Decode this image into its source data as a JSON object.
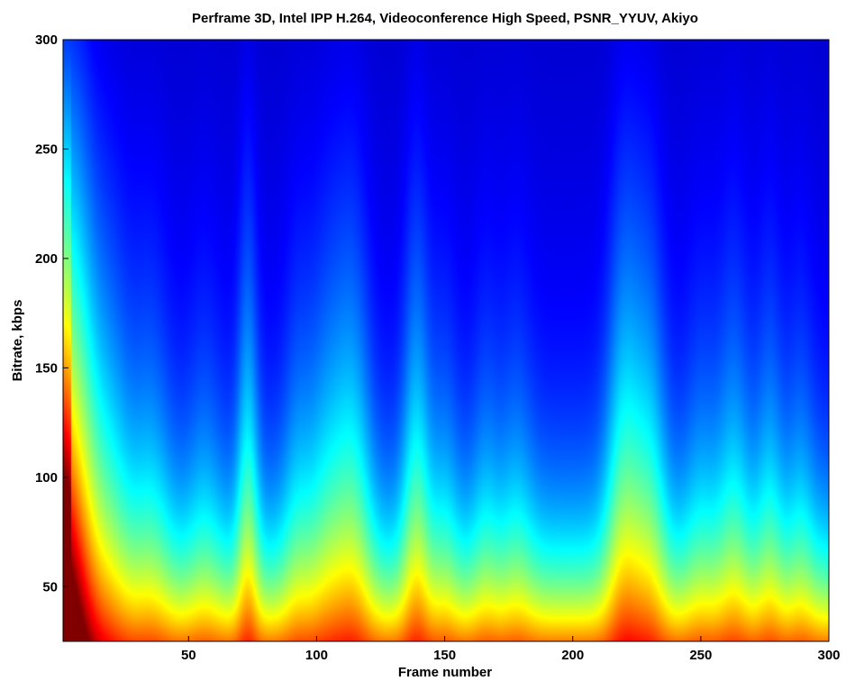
{
  "chart_data": {
    "type": "heatmap",
    "title": "Perframe 3D, Intel IPP H.264, Videoconference High Speed, PSNR_YYUV, Akiyo",
    "xlabel": "Frame number",
    "ylabel": "Bitrate, kbps",
    "xlim": [
      1,
      300
    ],
    "ylim": [
      25,
      300
    ],
    "x_ticks": [
      50,
      100,
      150,
      200,
      250,
      300
    ],
    "y_ticks": [
      50,
      100,
      150,
      200,
      250,
      300
    ],
    "grid": false,
    "legend": "none",
    "colormap": "jet",
    "value_scale": "relative PSNR (0 = low, 1 = high)",
    "peaks": [
      {
        "frame": 1,
        "height": 1.0,
        "width": 10
      },
      {
        "frame": 5,
        "height": 0.5,
        "width": 6
      },
      {
        "frame": 20,
        "height": 0.35,
        "width": 6
      },
      {
        "frame": 35,
        "height": 0.3,
        "width": 6
      },
      {
        "frame": 56,
        "height": 0.18,
        "width": 5
      },
      {
        "frame": 73,
        "height": 0.55,
        "width": 3
      },
      {
        "frame": 92,
        "height": 0.2,
        "width": 4
      },
      {
        "frame": 105,
        "height": 0.45,
        "width": 7
      },
      {
        "frame": 115,
        "height": 0.4,
        "width": 5
      },
      {
        "frame": 139,
        "height": 0.55,
        "width": 4
      },
      {
        "frame": 150,
        "height": 0.2,
        "width": 4
      },
      {
        "frame": 166,
        "height": 0.18,
        "width": 4
      },
      {
        "frame": 178,
        "height": 0.2,
        "width": 5
      },
      {
        "frame": 220,
        "height": 0.65,
        "width": 5
      },
      {
        "frame": 230,
        "height": 0.5,
        "width": 5
      },
      {
        "frame": 250,
        "height": 0.2,
        "width": 5
      },
      {
        "frame": 263,
        "height": 0.35,
        "width": 5
      },
      {
        "frame": 277,
        "height": 0.3,
        "width": 4
      },
      {
        "frame": 289,
        "height": 0.2,
        "width": 4
      }
    ],
    "colors": {
      "low": "#000080",
      "mid_low": "#0060ff",
      "mid": "#00ffff",
      "mid_high": "#ffff00",
      "high": "#800000"
    }
  }
}
